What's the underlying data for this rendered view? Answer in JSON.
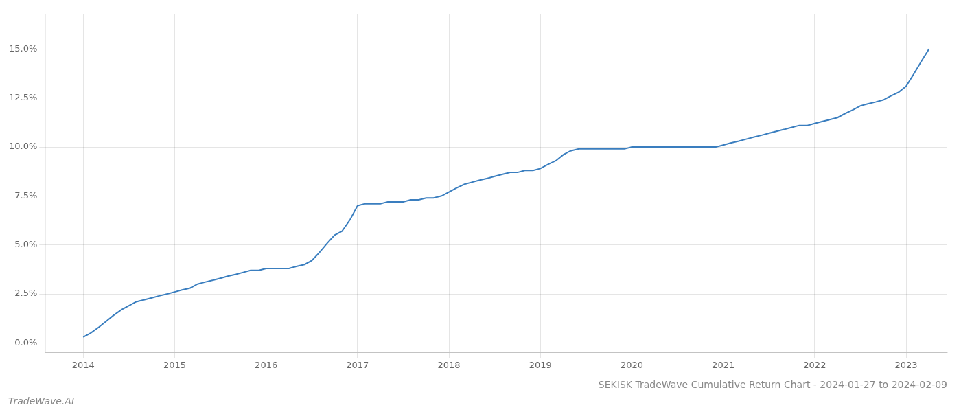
{
  "chart_data": {
    "type": "line",
    "title": "SEKISK TradeWave Cumulative Return Chart - 2024-01-27 to 2024-02-09",
    "annotations": [
      "TradeWave.AI"
    ],
    "color": "#3a7ebf",
    "grid": true,
    "x": [
      2014.0,
      2014.08,
      2014.17,
      2014.25,
      2014.33,
      2014.42,
      2014.5,
      2014.58,
      2014.67,
      2014.75,
      2014.83,
      2014.92,
      2015.0,
      2015.08,
      2015.17,
      2015.25,
      2015.33,
      2015.42,
      2015.5,
      2015.58,
      2015.67,
      2015.75,
      2015.83,
      2015.92,
      2016.0,
      2016.08,
      2016.17,
      2016.25,
      2016.33,
      2016.42,
      2016.5,
      2016.58,
      2016.67,
      2016.75,
      2016.83,
      2016.92,
      2017.0,
      2017.08,
      2017.17,
      2017.25,
      2017.33,
      2017.42,
      2017.5,
      2017.58,
      2017.67,
      2017.75,
      2017.83,
      2017.92,
      2018.0,
      2018.08,
      2018.17,
      2018.25,
      2018.33,
      2018.42,
      2018.5,
      2018.58,
      2018.67,
      2018.75,
      2018.83,
      2018.92,
      2019.0,
      2019.08,
      2019.17,
      2019.25,
      2019.33,
      2019.42,
      2019.5,
      2019.58,
      2019.67,
      2019.75,
      2019.83,
      2019.92,
      2020.0,
      2020.08,
      2020.17,
      2020.25,
      2020.33,
      2020.42,
      2020.5,
      2020.58,
      2020.67,
      2020.75,
      2020.83,
      2020.92,
      2021.0,
      2021.08,
      2021.17,
      2021.25,
      2021.33,
      2021.42,
      2021.5,
      2021.58,
      2021.67,
      2021.75,
      2021.83,
      2021.92,
      2022.0,
      2022.08,
      2022.17,
      2022.25,
      2022.33,
      2022.42,
      2022.5,
      2022.58,
      2022.67,
      2022.75,
      2022.83,
      2022.92,
      2023.0,
      2023.08,
      2023.17,
      2023.25
    ],
    "values": [
      0.003,
      0.005,
      0.008,
      0.011,
      0.014,
      0.017,
      0.019,
      0.021,
      0.022,
      0.023,
      0.024,
      0.025,
      0.026,
      0.027,
      0.028,
      0.03,
      0.031,
      0.032,
      0.033,
      0.034,
      0.035,
      0.036,
      0.037,
      0.037,
      0.038,
      0.038,
      0.038,
      0.038,
      0.039,
      0.04,
      0.042,
      0.046,
      0.051,
      0.055,
      0.057,
      0.063,
      0.07,
      0.071,
      0.071,
      0.071,
      0.072,
      0.072,
      0.072,
      0.073,
      0.073,
      0.074,
      0.074,
      0.075,
      0.077,
      0.079,
      0.081,
      0.082,
      0.083,
      0.084,
      0.085,
      0.086,
      0.087,
      0.087,
      0.088,
      0.088,
      0.089,
      0.091,
      0.093,
      0.096,
      0.098,
      0.099,
      0.099,
      0.099,
      0.099,
      0.099,
      0.099,
      0.099,
      0.1,
      0.1,
      0.1,
      0.1,
      0.1,
      0.1,
      0.1,
      0.1,
      0.1,
      0.1,
      0.1,
      0.1,
      0.101,
      0.102,
      0.103,
      0.104,
      0.105,
      0.106,
      0.107,
      0.108,
      0.109,
      0.11,
      0.111,
      0.111,
      0.112,
      0.113,
      0.114,
      0.115,
      0.117,
      0.119,
      0.121,
      0.122,
      0.123,
      0.124,
      0.126,
      0.128,
      0.131,
      0.137,
      0.144,
      0.15
    ],
    "xlim": [
      2013.58,
      2023.45
    ],
    "xticks": [
      2014,
      2015,
      2016,
      2017,
      2018,
      2019,
      2020,
      2021,
      2022,
      2023
    ],
    "ylim": [
      -0.005,
      0.168
    ],
    "yticks": [
      {
        "value": 0.0,
        "label": "0.0%"
      },
      {
        "value": 0.025,
        "label": "2.5%"
      },
      {
        "value": 0.05,
        "label": "5.0%"
      },
      {
        "value": 0.075,
        "label": "7.5%"
      },
      {
        "value": 0.1,
        "label": "10.0%"
      },
      {
        "value": 0.125,
        "label": "12.5%"
      },
      {
        "value": 0.15,
        "label": "15.0%"
      }
    ]
  }
}
